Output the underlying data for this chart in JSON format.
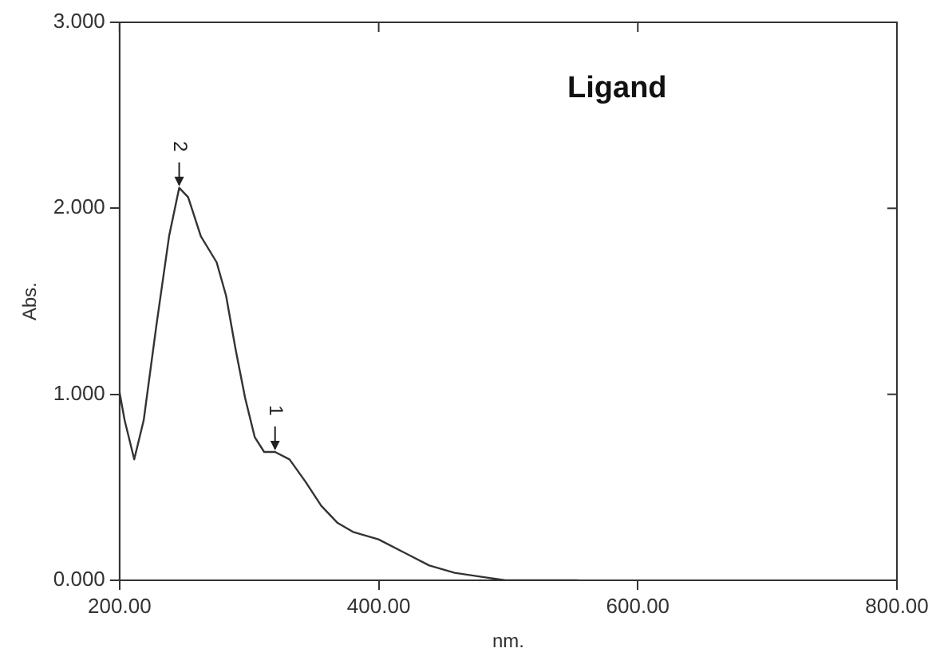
{
  "chart_data": {
    "type": "line",
    "title": "Ligand",
    "xlabel": "nm.",
    "ylabel": "Abs.",
    "xlim": [
      200,
      800
    ],
    "xticks": [
      {
        "value": 200,
        "label": "200.00"
      },
      {
        "value": 400,
        "label": "400.00"
      },
      {
        "value": 600,
        "label": "600.00"
      },
      {
        "value": 800,
        "label": "800.00"
      }
    ],
    "ylim": [
      0,
      3
    ],
    "yticks": [
      {
        "value": 0,
        "label": "0.000"
      },
      {
        "value": 1,
        "label": "1.000"
      },
      {
        "value": 2,
        "label": "2.000"
      },
      {
        "value": 3,
        "label": "3.000"
      }
    ],
    "marker": "none",
    "series": [
      {
        "color": "#333333",
        "x": [
          200,
          203.9,
          211.3,
          218.6,
          228.4,
          238.2,
          246,
          252.9,
          262.7,
          274.9,
          282.2,
          289.6,
          296.9,
          304.3,
          311.6,
          320,
          331.2,
          343.5,
          355.7,
          368,
          380.2,
          399.8,
          419.4,
          439,
          458.6,
          478.2,
          497.8,
          554
        ],
        "values": [
          1.01,
          0.86,
          0.65,
          0.86,
          1.37,
          1.85,
          2.11,
          2.06,
          1.85,
          1.71,
          1.53,
          1.24,
          0.98,
          0.77,
          0.69,
          0.69,
          0.65,
          0.53,
          0.4,
          0.31,
          0.26,
          0.22,
          0.15,
          0.08,
          0.04,
          0.02,
          0.0,
          0.0
        ]
      }
    ],
    "annotations": [
      {
        "text": "2",
        "x": 246,
        "y": 2.11
      },
      {
        "text": "1",
        "x": 320,
        "y": 0.69
      }
    ]
  }
}
